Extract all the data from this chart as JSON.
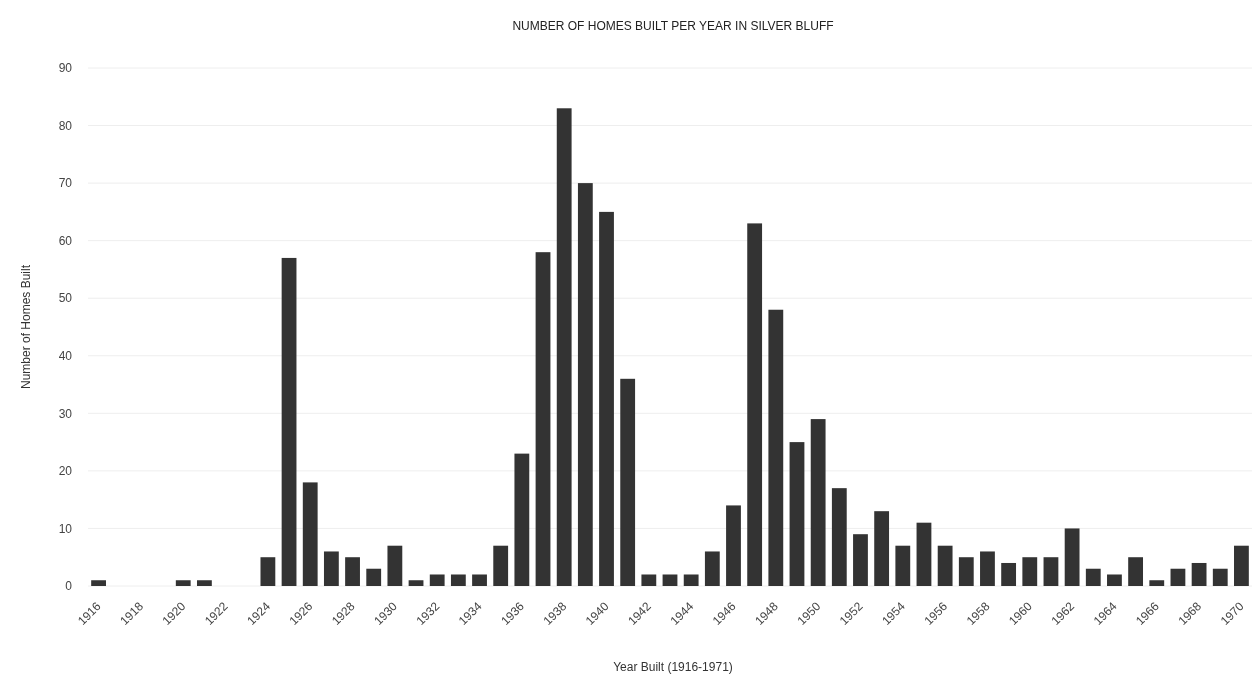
{
  "chart_data": {
    "type": "bar",
    "title": "NUMBER OF HOMES BUILT PER YEAR IN SILVER BLUFF",
    "xlabel": "Year Built (1916-1971)",
    "ylabel": "Number of Homes Built",
    "categories": [
      "1916",
      null,
      "1918",
      null,
      "1920",
      null,
      "1922",
      null,
      "1924",
      null,
      "1926",
      null,
      "1928",
      null,
      "1930",
      null,
      "1932",
      null,
      "1934",
      null,
      "1936",
      null,
      "1938",
      null,
      "1940",
      null,
      "1942",
      null,
      "1944",
      null,
      "1946",
      null,
      "1948",
      null,
      "1950",
      null,
      "1952",
      null,
      "1954",
      null,
      "1956",
      null,
      "1958",
      null,
      "1960",
      null,
      "1962",
      null,
      "1964",
      null,
      "1966",
      null,
      "1968",
      null,
      "1970"
    ],
    "values": [
      1,
      0,
      0,
      0,
      1,
      1,
      0,
      0,
      5,
      57,
      18,
      6,
      5,
      3,
      7,
      1,
      2,
      2,
      2,
      7,
      23,
      58,
      83,
      70,
      65,
      36,
      2,
      2,
      2,
      6,
      14,
      63,
      48,
      25,
      29,
      17,
      9,
      13,
      7,
      11,
      7,
      5,
      6,
      4,
      5,
      5,
      10,
      3,
      2,
      5,
      1,
      3,
      4,
      3,
      7
    ],
    "color": "#333333",
    "ylim": [
      0,
      90
    ],
    "yticks": [
      0,
      10,
      20,
      30,
      40,
      50,
      60,
      70,
      80,
      90
    ],
    "grid": "y"
  }
}
